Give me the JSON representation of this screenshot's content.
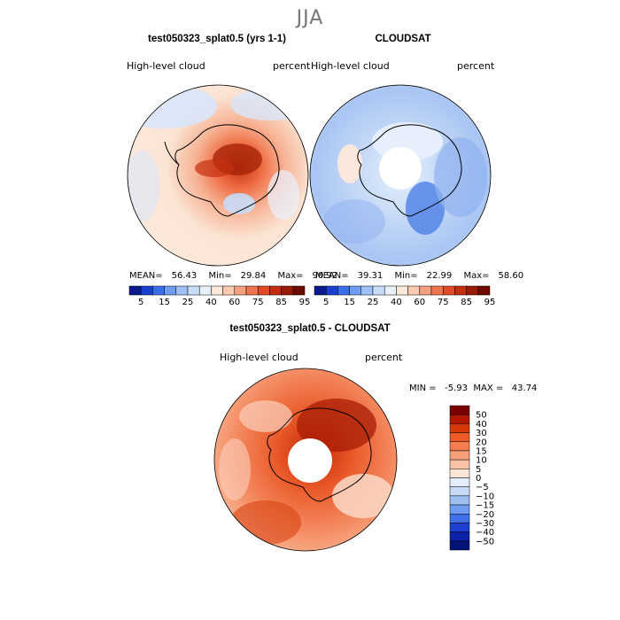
{
  "figure": {
    "season": "JJA"
  },
  "panel_model": {
    "title": "test050323_splat0.5 (yrs 1-1)",
    "variable": "High-level cloud",
    "units": "percent",
    "mean_label": "MEAN=",
    "mean": "56.43",
    "min_label": "Min=",
    "min": "29.84",
    "max_label": "Max=",
    "max": "90.92"
  },
  "panel_obs": {
    "title": "CLOUDSAT",
    "variable": "High-level cloud",
    "units": "percent",
    "mean_label": "MEAN=",
    "mean": "39.31",
    "min_label": "Min=",
    "min": "22.99",
    "max_label": "Max=",
    "max": "58.60"
  },
  "panel_diff": {
    "title": "test050323_splat0.5 - CLOUDSAT",
    "variable": "High-level cloud",
    "units": "percent",
    "stats_text": "MIN =   -5.93  MAX =   43.74"
  },
  "chart_data": [
    {
      "type": "heatmap",
      "projection": "south-polar-stereographic",
      "title": "test050323_splat0.5 (yrs 1-1)",
      "variable": "High-level cloud (percent)",
      "mean": 56.43,
      "min": 29.84,
      "max": 90.92,
      "colorbar_levels": [
        5,
        15,
        25,
        40,
        60,
        75,
        85,
        95
      ]
    },
    {
      "type": "heatmap",
      "projection": "south-polar-stereographic",
      "title": "CLOUDSAT",
      "variable": "High-level cloud (percent)",
      "mean": 39.31,
      "min": 22.99,
      "max": 58.6,
      "colorbar_levels": [
        5,
        15,
        25,
        40,
        60,
        75,
        85,
        95
      ]
    },
    {
      "type": "heatmap",
      "projection": "south-polar-stereographic",
      "title": "test050323_splat0.5 - CLOUDSAT",
      "variable": "High-level cloud (percent)",
      "min": -5.93,
      "max": 43.74,
      "colorbar_levels": [
        50,
        40,
        30,
        20,
        15,
        10,
        5,
        0,
        -5,
        -10,
        -15,
        -20,
        -30,
        -40,
        -50
      ]
    }
  ],
  "colorbar_top": {
    "labels": [
      "5",
      "15",
      "25",
      "40",
      "60",
      "75",
      "85",
      "95"
    ],
    "colors": [
      "#0b1a8c",
      "#1a3fd0",
      "#3a6ee8",
      "#6e9cf0",
      "#9fc0f5",
      "#c8dcf8",
      "#e8f0fb",
      "#fbe8dc",
      "#f8c9ae",
      "#f4a07e",
      "#ee7350",
      "#e04a26",
      "#c42d10",
      "#9a1a08",
      "#6e0b02"
    ]
  },
  "colorbar_diff": {
    "labels": [
      "50",
      "40",
      "30",
      "20",
      "15",
      "10",
      "5",
      "0",
      "−5",
      "−10",
      "−15",
      "−20",
      "−30",
      "−40",
      "−50"
    ],
    "colors": [
      "#7a0000",
      "#b01800",
      "#d63a0a",
      "#ee5a28",
      "#f47c50",
      "#f79e7a",
      "#fac2a6",
      "#fde5d8",
      "#e4eefb",
      "#c6daf6",
      "#9cc0f2",
      "#6e9cf0",
      "#3f70e6",
      "#1f3fd0",
      "#0c22a8",
      "#041377"
    ]
  }
}
